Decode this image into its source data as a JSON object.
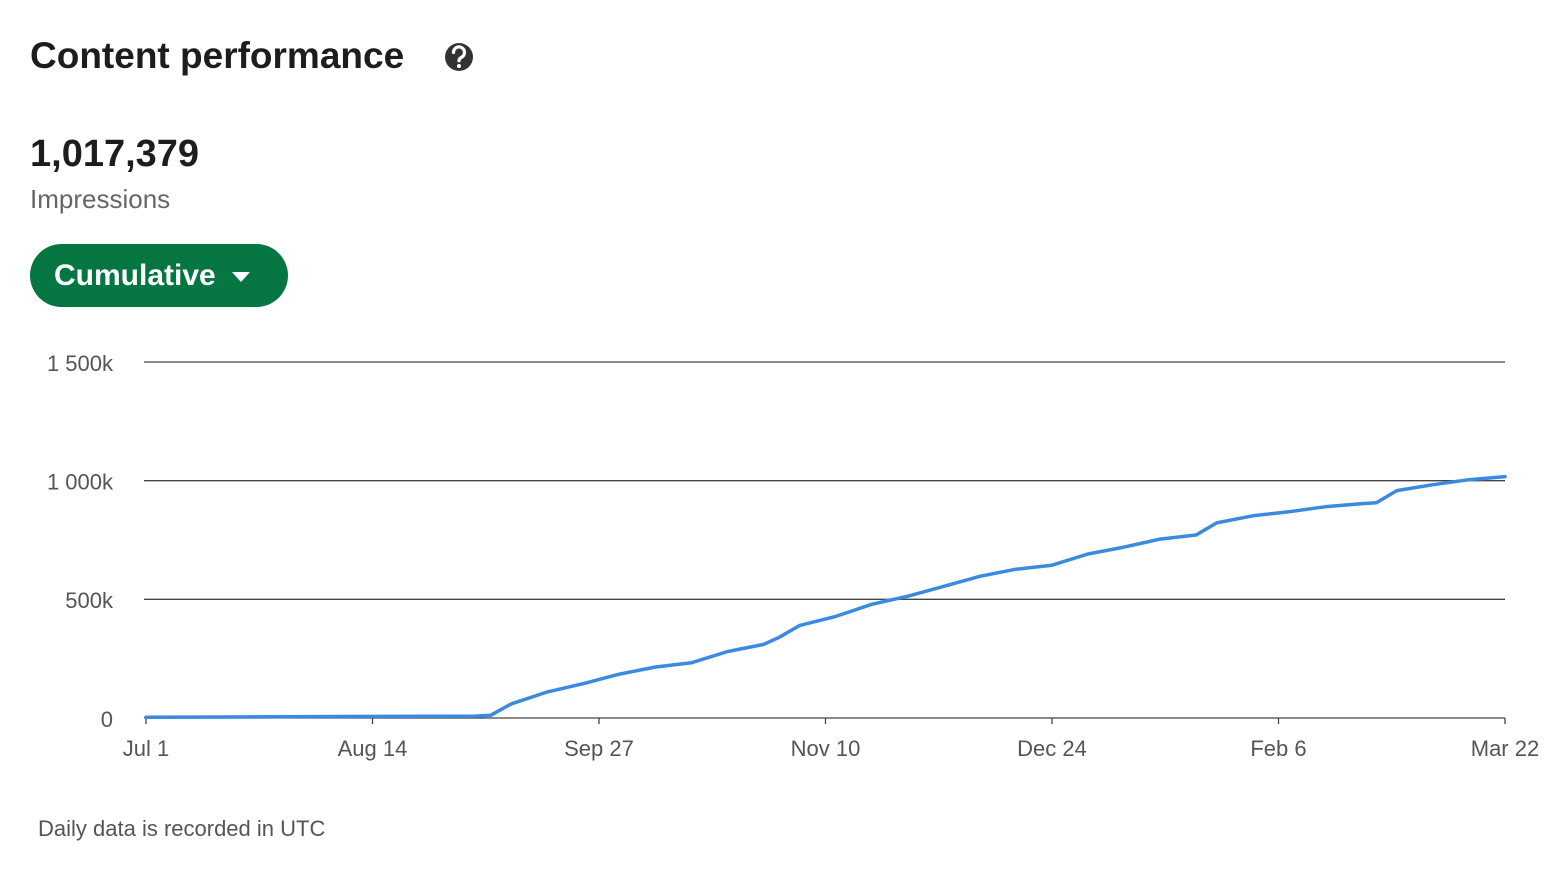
{
  "header": {
    "title": "Content performance"
  },
  "metric": {
    "value": "1,017,379",
    "label": "Impressions"
  },
  "button": {
    "label": "Cumulative"
  },
  "footer": {
    "note": "Daily data is recorded in UTC"
  },
  "chart_data": {
    "type": "line",
    "x": [
      "Jul 1",
      "Aug 1",
      "Sep 3",
      "Sep 6",
      "Sep 10",
      "Sep 17",
      "Sep 24",
      "Oct 1",
      "Oct 8",
      "Oct 15",
      "Oct 22",
      "Oct 29",
      "Nov 1",
      "Nov 5",
      "Nov 12",
      "Nov 19",
      "Nov 26",
      "Dec 3",
      "Dec 10",
      "Dec 17",
      "Dec 24",
      "Dec 31",
      "Jan 7",
      "Jan 14",
      "Jan 21",
      "Jan 25",
      "Feb 1",
      "Feb 8",
      "Feb 15",
      "Feb 22",
      "Feb 25",
      "Mar 1",
      "Mar 8",
      "Mar 15",
      "Mar 22"
    ],
    "series": [
      {
        "name": "Impressions",
        "color": "#3b8ae0",
        "values": [
          3000,
          6000,
          8000,
          12000,
          60000,
          110000,
          145000,
          185000,
          215000,
          233000,
          280000,
          310000,
          340000,
          390000,
          428000,
          479000,
          513000,
          555000,
          597000,
          627000,
          644000,
          691000,
          720000,
          754000,
          771000,
          822000,
          852000,
          869000,
          890000,
          903000,
          907000,
          958000,
          983000,
          1004000,
          1017000
        ]
      }
    ],
    "xlim": [
      "Jul 1",
      "Mar 22"
    ],
    "xticks": [
      "Jul 1",
      "Aug 14",
      "Sep 27",
      "Nov 10",
      "Dec 24",
      "Feb 6",
      "Mar 22"
    ],
    "ylim": [
      0,
      1500000
    ],
    "yticks": [
      0,
      {
        "value": 500000,
        "label": "500k"
      },
      {
        "value": 1000000,
        "label": "1 000k"
      },
      {
        "value": 1500000,
        "label": "1 500k"
      }
    ],
    "grid": true
  }
}
